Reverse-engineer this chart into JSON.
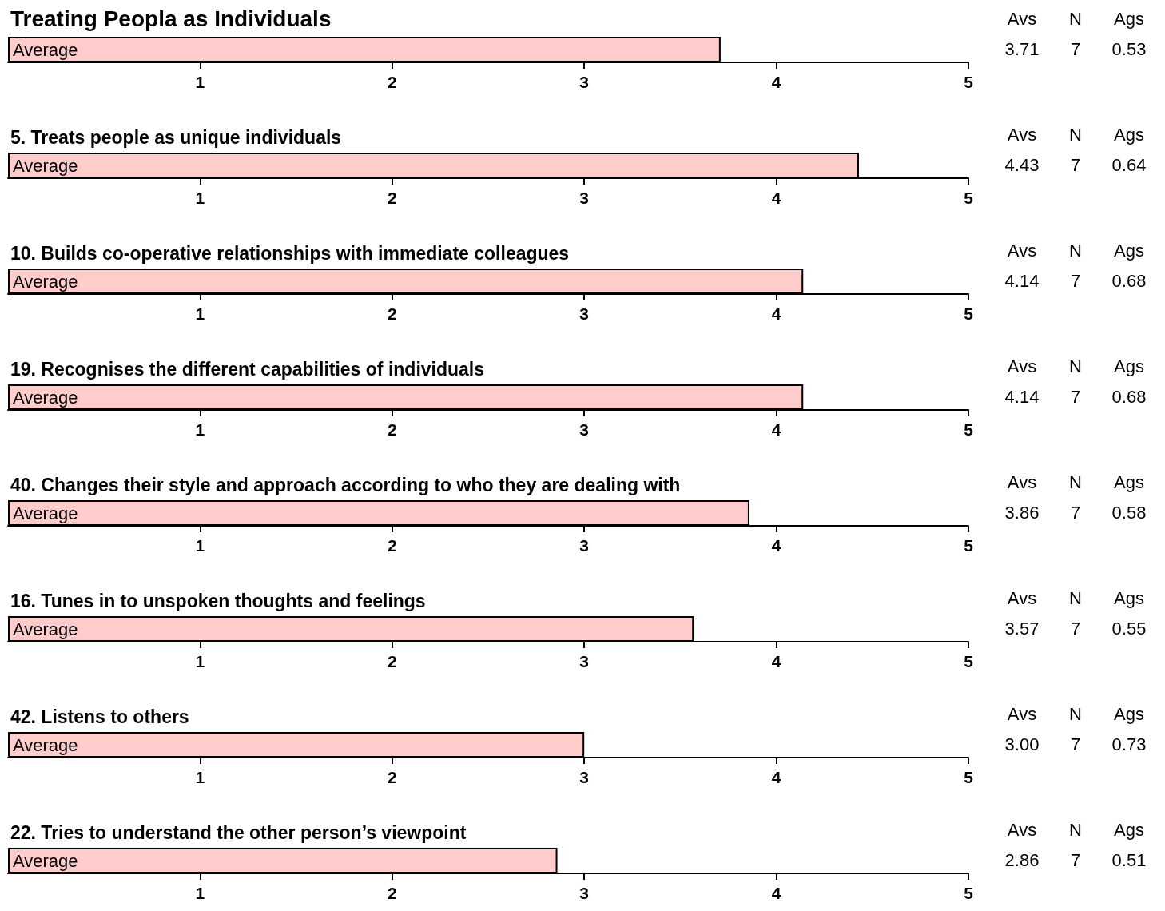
{
  "chart_data": [
    {
      "type": "bar",
      "orientation": "horizontal",
      "title": "Treating Peopla as Individuals",
      "categories": [
        "Average"
      ],
      "values": [
        3.71
      ],
      "color": "#ffcccc",
      "xlim": [
        0,
        5
      ],
      "xticks": [
        1,
        2,
        3,
        4,
        5
      ],
      "grid": false,
      "annotations": [
        "Avs",
        "N",
        "Ags",
        "3.71",
        "7",
        "0.53"
      ]
    },
    {
      "type": "bar",
      "orientation": "horizontal",
      "title": "5. Treats people as unique individuals",
      "categories": [
        "Average"
      ],
      "values": [
        4.43
      ],
      "color": "#ffcccc",
      "xlim": [
        0,
        5
      ],
      "xticks": [
        1,
        2,
        3,
        4,
        5
      ],
      "grid": false,
      "annotations": [
        "Avs",
        "N",
        "Ags",
        "4.43",
        "7",
        "0.64"
      ]
    },
    {
      "type": "bar",
      "orientation": "horizontal",
      "title": "10. Builds co-operative relationships with immediate colleagues",
      "categories": [
        "Average"
      ],
      "values": [
        4.14
      ],
      "color": "#ffcccc",
      "xlim": [
        0,
        5
      ],
      "xticks": [
        1,
        2,
        3,
        4,
        5
      ],
      "grid": false,
      "annotations": [
        "Avs",
        "N",
        "Ags",
        "4.14",
        "7",
        "0.68"
      ]
    },
    {
      "type": "bar",
      "orientation": "horizontal",
      "title": "19. Recognises the different capabilities of individuals",
      "categories": [
        "Average"
      ],
      "values": [
        4.14
      ],
      "color": "#ffcccc",
      "xlim": [
        0,
        5
      ],
      "xticks": [
        1,
        2,
        3,
        4,
        5
      ],
      "grid": false,
      "annotations": [
        "Avs",
        "N",
        "Ags",
        "4.14",
        "7",
        "0.68"
      ]
    },
    {
      "type": "bar",
      "orientation": "horizontal",
      "title": "40. Changes their style and approach according to who they are dealing with",
      "categories": [
        "Average"
      ],
      "values": [
        3.86
      ],
      "color": "#ffcccc",
      "xlim": [
        0,
        5
      ],
      "xticks": [
        1,
        2,
        3,
        4,
        5
      ],
      "grid": false,
      "annotations": [
        "Avs",
        "N",
        "Ags",
        "3.86",
        "7",
        "0.58"
      ]
    },
    {
      "type": "bar",
      "orientation": "horizontal",
      "title": "16. Tunes in to unspoken thoughts and feelings",
      "categories": [
        "Average"
      ],
      "values": [
        3.57
      ],
      "color": "#ffcccc",
      "xlim": [
        0,
        5
      ],
      "xticks": [
        1,
        2,
        3,
        4,
        5
      ],
      "grid": false,
      "annotations": [
        "Avs",
        "N",
        "Ags",
        "3.57",
        "7",
        "0.55"
      ]
    },
    {
      "type": "bar",
      "orientation": "horizontal",
      "title": "42. Listens to others",
      "categories": [
        "Average"
      ],
      "values": [
        3.0
      ],
      "color": "#ffcccc",
      "xlim": [
        0,
        5
      ],
      "xticks": [
        1,
        2,
        3,
        4,
        5
      ],
      "grid": false,
      "annotations": [
        "Avs",
        "N",
        "Ags",
        "3.00",
        "7",
        "0.73"
      ]
    },
    {
      "type": "bar",
      "orientation": "horizontal",
      "title": "22. Tries to understand the other person’s viewpoint",
      "categories": [
        "Average"
      ],
      "values": [
        2.86
      ],
      "color": "#ffcccc",
      "xlim": [
        0,
        5
      ],
      "xticks": [
        1,
        2,
        3,
        4,
        5
      ],
      "grid": false,
      "annotations": [
        "Avs",
        "N",
        "Ags",
        "2.86",
        "7",
        "0.51"
      ]
    }
  ]
}
